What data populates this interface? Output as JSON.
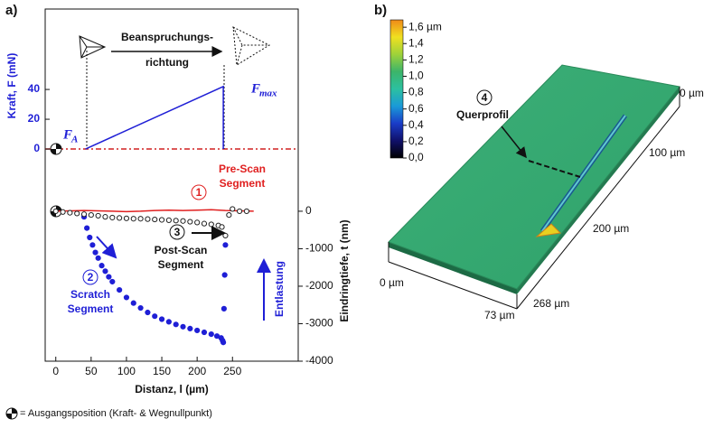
{
  "panel_labels": [
    "a)",
    "b)"
  ],
  "chart_data": [
    {
      "type": "line",
      "y_label": "Kraft, F (mN)",
      "xlim": [
        -15,
        343
      ],
      "ylim": [
        -3,
        94
      ],
      "yticks": [
        0,
        20,
        40
      ],
      "series": [
        {
          "color": "#1f1fd6",
          "x": [
            42,
            237,
            237
          ],
          "values": [
            0,
            42,
            0
          ]
        }
      ],
      "annotations": [
        {
          "main": "F",
          "sub": "A"
        },
        {
          "main": "F",
          "sub": "max"
        }
      ],
      "arrow_text": [
        "Beanspruchungs-",
        "richtung"
      ]
    },
    {
      "type": "scatter",
      "x_label": "Distanz, l (µm)",
      "y_label": "Eindringtiefe, t (nm)",
      "xlim": [
        -15,
        343
      ],
      "xticks": [
        0,
        50,
        100,
        150,
        200,
        250
      ],
      "ylim": [
        -4000,
        1540
      ],
      "yticks": [
        0,
        -1000,
        -2000,
        -3000,
        -4000
      ],
      "series": [
        {
          "color": "#e02020",
          "style": "line",
          "x": [
            0,
            20,
            40,
            60,
            80,
            100,
            120,
            140,
            160,
            180,
            200,
            220,
            240,
            260,
            280
          ],
          "values": [
            0,
            10,
            20,
            10,
            0,
            -10,
            0,
            20,
            30,
            20,
            30,
            40,
            20,
            10,
            0
          ]
        },
        {
          "color": "#1f1fd6",
          "style": "filled",
          "x": [
            40,
            44,
            48,
            52,
            56,
            60,
            65,
            70,
            75,
            80,
            90,
            100,
            110,
            120,
            130,
            140,
            150,
            160,
            170,
            180,
            190,
            200,
            210,
            220,
            228,
            234,
            236,
            237,
            238,
            239,
            240
          ],
          "values": [
            -150,
            -450,
            -700,
            -900,
            -1100,
            -1250,
            -1450,
            -1600,
            -1750,
            -1880,
            -2100,
            -2300,
            -2450,
            -2580,
            -2700,
            -2800,
            -2880,
            -2950,
            -3020,
            -3080,
            -3130,
            -3180,
            -3230,
            -3280,
            -3330,
            -3380,
            -3450,
            -3500,
            -2600,
            -1700,
            -900
          ]
        },
        {
          "color": "#222222",
          "style": "open",
          "x": [
            0,
            10,
            20,
            30,
            40,
            50,
            60,
            70,
            80,
            90,
            100,
            110,
            120,
            130,
            140,
            150,
            160,
            170,
            180,
            190,
            200,
            210,
            220,
            230,
            235,
            240,
            245,
            250,
            260,
            270
          ],
          "values": [
            0,
            -20,
            -40,
            -60,
            -80,
            -100,
            -120,
            -150,
            -170,
            -180,
            -190,
            -200,
            -200,
            -210,
            -220,
            -230,
            -240,
            -250,
            -260,
            -280,
            -300,
            -330,
            -350,
            -380,
            -420,
            -650,
            -100,
            60,
            0,
            0
          ]
        }
      ],
      "annotations": [
        {
          "number": "1",
          "lines": [
            "Pre-Scan",
            "Segment"
          ],
          "color": "#e02020"
        },
        {
          "number": "2",
          "lines": [
            "Scratch",
            "Segment"
          ],
          "color": "#1f1fd6"
        },
        {
          "number": "3",
          "lines": [
            "Post-Scan",
            "Segment"
          ],
          "color": "#111111"
        },
        {
          "lines": [
            "Entlastung"
          ],
          "color": "#1f1fd6"
        }
      ]
    },
    {
      "type": "colorbar",
      "ylim": [
        0,
        1.69
      ],
      "yticks": [
        {
          "value": 1.6,
          "label": "1,6 µm"
        },
        {
          "value": 1.4,
          "label": "1,4"
        },
        {
          "value": 1.2,
          "label": "1,2"
        },
        {
          "value": 1.0,
          "label": "1,0"
        },
        {
          "value": 0.8,
          "label": "0,8"
        },
        {
          "value": 0.6,
          "label": "0,6"
        },
        {
          "value": 0.4,
          "label": "0,4"
        },
        {
          "value": 0.2,
          "label": "0,2"
        },
        {
          "value": 0.0,
          "label": "0,0"
        }
      ],
      "colors": [
        "#000000",
        "#10106a",
        "#1a3cc8",
        "#1a9ad8",
        "#2cc0a0",
        "#3cb46a",
        "#9ed23a",
        "#f0e020",
        "#f08a18"
      ]
    }
  ],
  "panel_b": {
    "axis_labels": [
      "0 µm",
      "100 µm",
      "200 µm",
      "268 µm",
      "73 µm",
      "0 µm"
    ],
    "callout_number": "4",
    "callout": "Querprofil"
  },
  "footnote": "= Ausgangsposition (Kraft- & Wegnullpunkt)"
}
